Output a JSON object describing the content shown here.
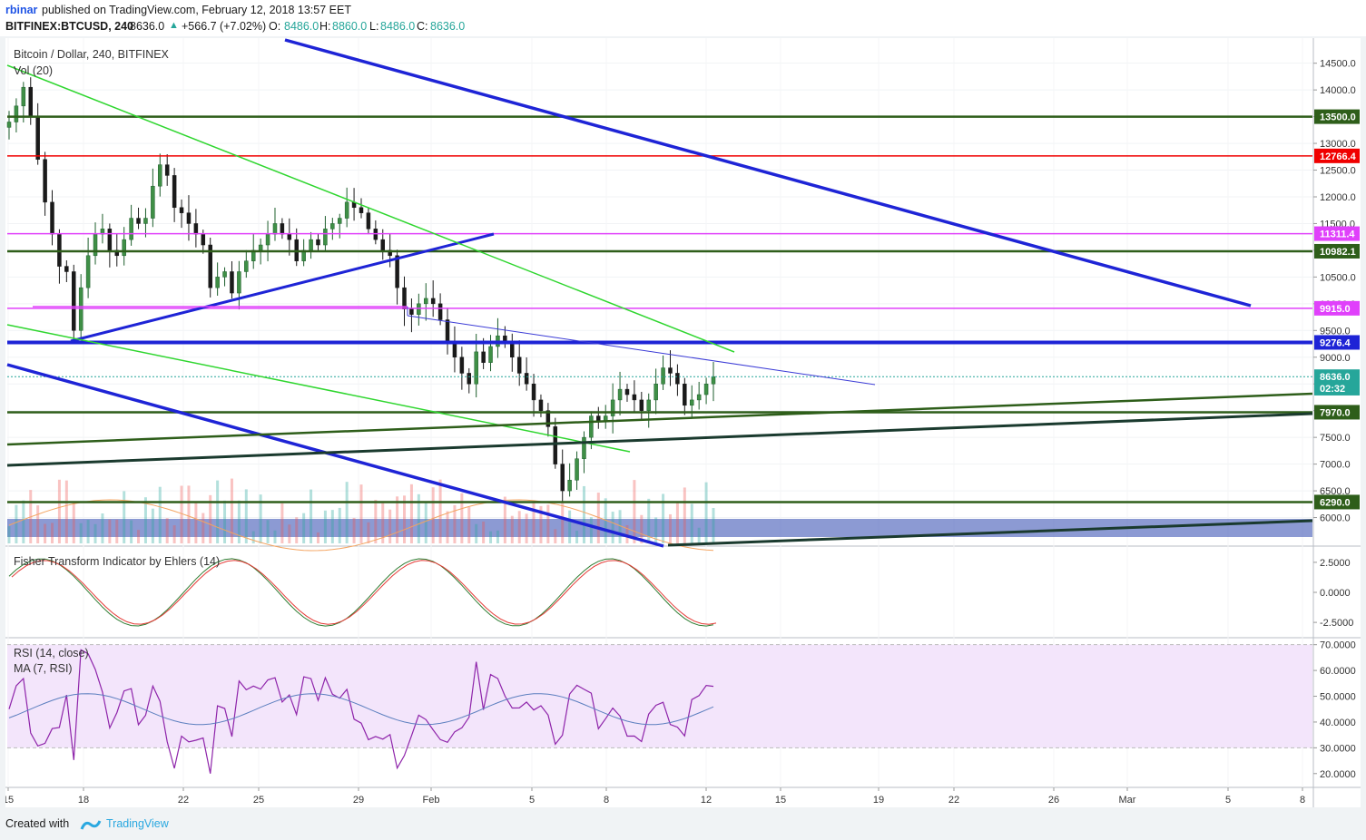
{
  "header": {
    "user": "rbinar",
    "published": "published on TradingView.com, February 12, 2018 13:57 EET",
    "symbol": "BITFINEX:BTCUSD, 240",
    "last": "8636.0",
    "change": "+566.7 (+7.02%)",
    "o_label": "O:",
    "o": "8486.0",
    "h_label": "H:",
    "h": "8860.0",
    "l_label": "L:",
    "l": "8486.0",
    "c_label": "C:",
    "c": "8636.0"
  },
  "pane_labels": {
    "main_title": "Bitcoin / Dollar, 240, BITFINEX",
    "volume": "Vol (20)",
    "fisher": "Fisher Transform Indicator by Ehlers (14)",
    "rsi": "RSI (14, close)",
    "rsi_ma": "MA (7, RSI)"
  },
  "footer": {
    "created_with": "Created with",
    "brand": "TradingView"
  },
  "colors": {
    "up": "#26a69a",
    "down": "#ef5350",
    "blue_trend": "#1e24d6",
    "green_trend": "#2fd62f",
    "dark_green_level": "#2e5e1a",
    "red_level": "#f00000",
    "magenta_level": "#e040fb",
    "rsi_band": "#f3e5fb"
  },
  "chart_data": [
    {
      "type": "candlestick",
      "title": "Bitcoin / Dollar, 240, BITFINEX",
      "ylim": [
        5500,
        14800
      ],
      "yticks": [
        "14500.0",
        "14000.0",
        "13500.0",
        "13000.0",
        "12500.0",
        "12000.0",
        "11500.0",
        "11000.0",
        "10500.0",
        "10000.0",
        "9500.0",
        "9000.0",
        "8500.0",
        "8000.0",
        "7500.0",
        "7000.0",
        "6500.0",
        "6000.0"
      ],
      "xticks": [
        "15",
        "18",
        "22",
        "25",
        "29",
        "Feb",
        "5",
        "8",
        "12",
        "15",
        "19",
        "22",
        "26",
        "Mar",
        "5",
        "8"
      ],
      "price_levels": [
        {
          "label": "13500.0",
          "value": 13500,
          "color": "#2e5e1a"
        },
        {
          "label": "12766.4",
          "value": 12766.4,
          "color": "#f00000"
        },
        {
          "label": "11311.4",
          "value": 11311.4,
          "color": "#e040fb"
        },
        {
          "label": "10982.1",
          "value": 10982.1,
          "color": "#2e5e1a"
        },
        {
          "label": "9915.0",
          "value": 9915,
          "color": "#e040fb"
        },
        {
          "label": "9276.4",
          "value": 9276.4,
          "color": "#1e24d6"
        },
        {
          "label": "8636.0",
          "value": 8636,
          "color": "#26a69a"
        },
        {
          "label": "02:32",
          "value": 8420,
          "color": "#26a69a"
        },
        {
          "label": "7970.0",
          "value": 7970,
          "color": "#2e5e1a"
        },
        {
          "label": "6290.0",
          "value": 6290,
          "color": "#2e5e1a"
        }
      ],
      "series_close": [
        13400,
        13700,
        14050,
        13500,
        12700,
        11900,
        11300,
        10700,
        10600,
        9500,
        10300,
        10900,
        11300,
        11400,
        11000,
        10900,
        11200,
        11600,
        11500,
        11600,
        12200,
        12600,
        12400,
        11800,
        11700,
        11500,
        11300,
        11100,
        10300,
        10500,
        10600,
        10200,
        10600,
        10800,
        11000,
        11100,
        11300,
        11500,
        11300,
        11200,
        10800,
        11000,
        11200,
        11100,
        11400,
        11500,
        11600,
        11900,
        11800,
        11700,
        11400,
        11200,
        11000,
        10900,
        10300,
        9900,
        9800,
        10000,
        10100,
        10000,
        9700,
        9300,
        9000,
        8700,
        8500,
        9100,
        8900,
        9200,
        9400,
        9300,
        9000,
        8700,
        8500,
        8200,
        8000,
        7700,
        7000,
        6500,
        6700,
        7100,
        7500,
        7900,
        7800,
        7900,
        8200,
        8400,
        8300,
        8200,
        8000,
        8200,
        8500,
        8800,
        8700,
        8500,
        8100,
        8200,
        8300,
        8500,
        8636
      ],
      "series": [
        {
          "name": "Vol (20)",
          "type": "bar",
          "color": "mixed"
        },
        {
          "name": "Fisher Transform Indicator by Ehlers (14)",
          "type": "line",
          "yticks": [
            "2.5000",
            "0.0000",
            "-2.5000"
          ],
          "ylim": [
            -3.7,
            3.7
          ]
        },
        {
          "name": "RSI (14, close)",
          "type": "line",
          "yticks": [
            "70.0000",
            "60.0000",
            "50.0000",
            "40.0000",
            "30.0000",
            "20.0000"
          ],
          "ylim": [
            15,
            72
          ]
        },
        {
          "name": "MA (7, RSI)",
          "type": "line"
        }
      ]
    }
  ]
}
